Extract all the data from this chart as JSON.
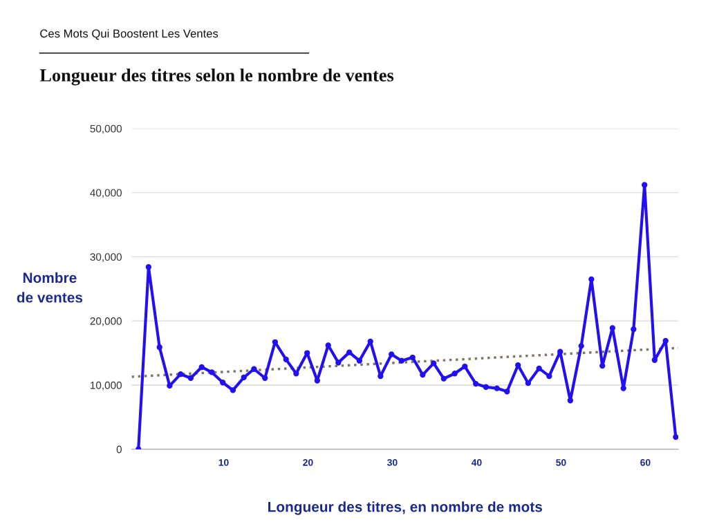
{
  "chart_data": {
    "type": "line",
    "subtitle": "Ces Mots Qui Boostent Les Ventes",
    "title": "Longueur des titres selon le nombre de ventes",
    "xlabel": "Longueur des titres, en nombre de mots",
    "ylabel": "Nombre\nde ventes",
    "x": [
      -0.1,
      1.1,
      2.4,
      3.6,
      4.9,
      6.1,
      7.4,
      8.6,
      9.9,
      11.1,
      12.4,
      13.6,
      14.9,
      16.1,
      17.4,
      18.6,
      19.9,
      21.1,
      22.4,
      23.6,
      24.9,
      26.1,
      27.4,
      28.6,
      29.9,
      31.1,
      32.4,
      33.6,
      34.9,
      36.1,
      37.4,
      38.6,
      39.9,
      41.1,
      42.4,
      43.6,
      44.9,
      46.1,
      47.4,
      48.6,
      49.9,
      51.1,
      52.4,
      53.6,
      54.9,
      56.1,
      57.4,
      58.6,
      59.9,
      61.1,
      62.4,
      63.6
    ],
    "series": [
      {
        "color": "#2211ee",
        "marker": "circle",
        "line_style": "solid",
        "values": [
          0,
          28400,
          15900,
          9900,
          11700,
          11100,
          12800,
          12000,
          10400,
          9200,
          11200,
          12500,
          11100,
          16700,
          14000,
          11800,
          15000,
          10700,
          16200,
          13500,
          15100,
          13800,
          16800,
          11400,
          14800,
          13800,
          14300,
          11600,
          13400,
          11000,
          11800,
          12900,
          10200,
          9700,
          9500,
          9000,
          13100,
          10300,
          12600,
          11400,
          15200,
          7600,
          16100,
          26500,
          13000,
          18900,
          9500,
          18700,
          41200,
          13900,
          16900,
          1900
        ]
      },
      {
        "type": "line",
        "color": "#7f7667",
        "marker": "none",
        "line_style": "dotted",
        "x": [
          -0.9,
          63.9
        ],
        "values": [
          11300,
          15800
        ]
      }
    ],
    "xlim": [
      -0.9,
      63.9
    ],
    "xticks": [
      10,
      20,
      30,
      40,
      50,
      60
    ],
    "ylim": [
      0,
      50000
    ],
    "yticks": [
      {
        "value": 0,
        "label": "0"
      },
      {
        "value": 10000,
        "label": "10,000"
      },
      {
        "value": 20000,
        "label": "20,000"
      },
      {
        "value": 30000,
        "label": "30,000"
      },
      {
        "value": 40000,
        "label": "40,000"
      },
      {
        "value": 50000,
        "label": "50,000"
      }
    ],
    "grid": "y",
    "legend": false
  }
}
